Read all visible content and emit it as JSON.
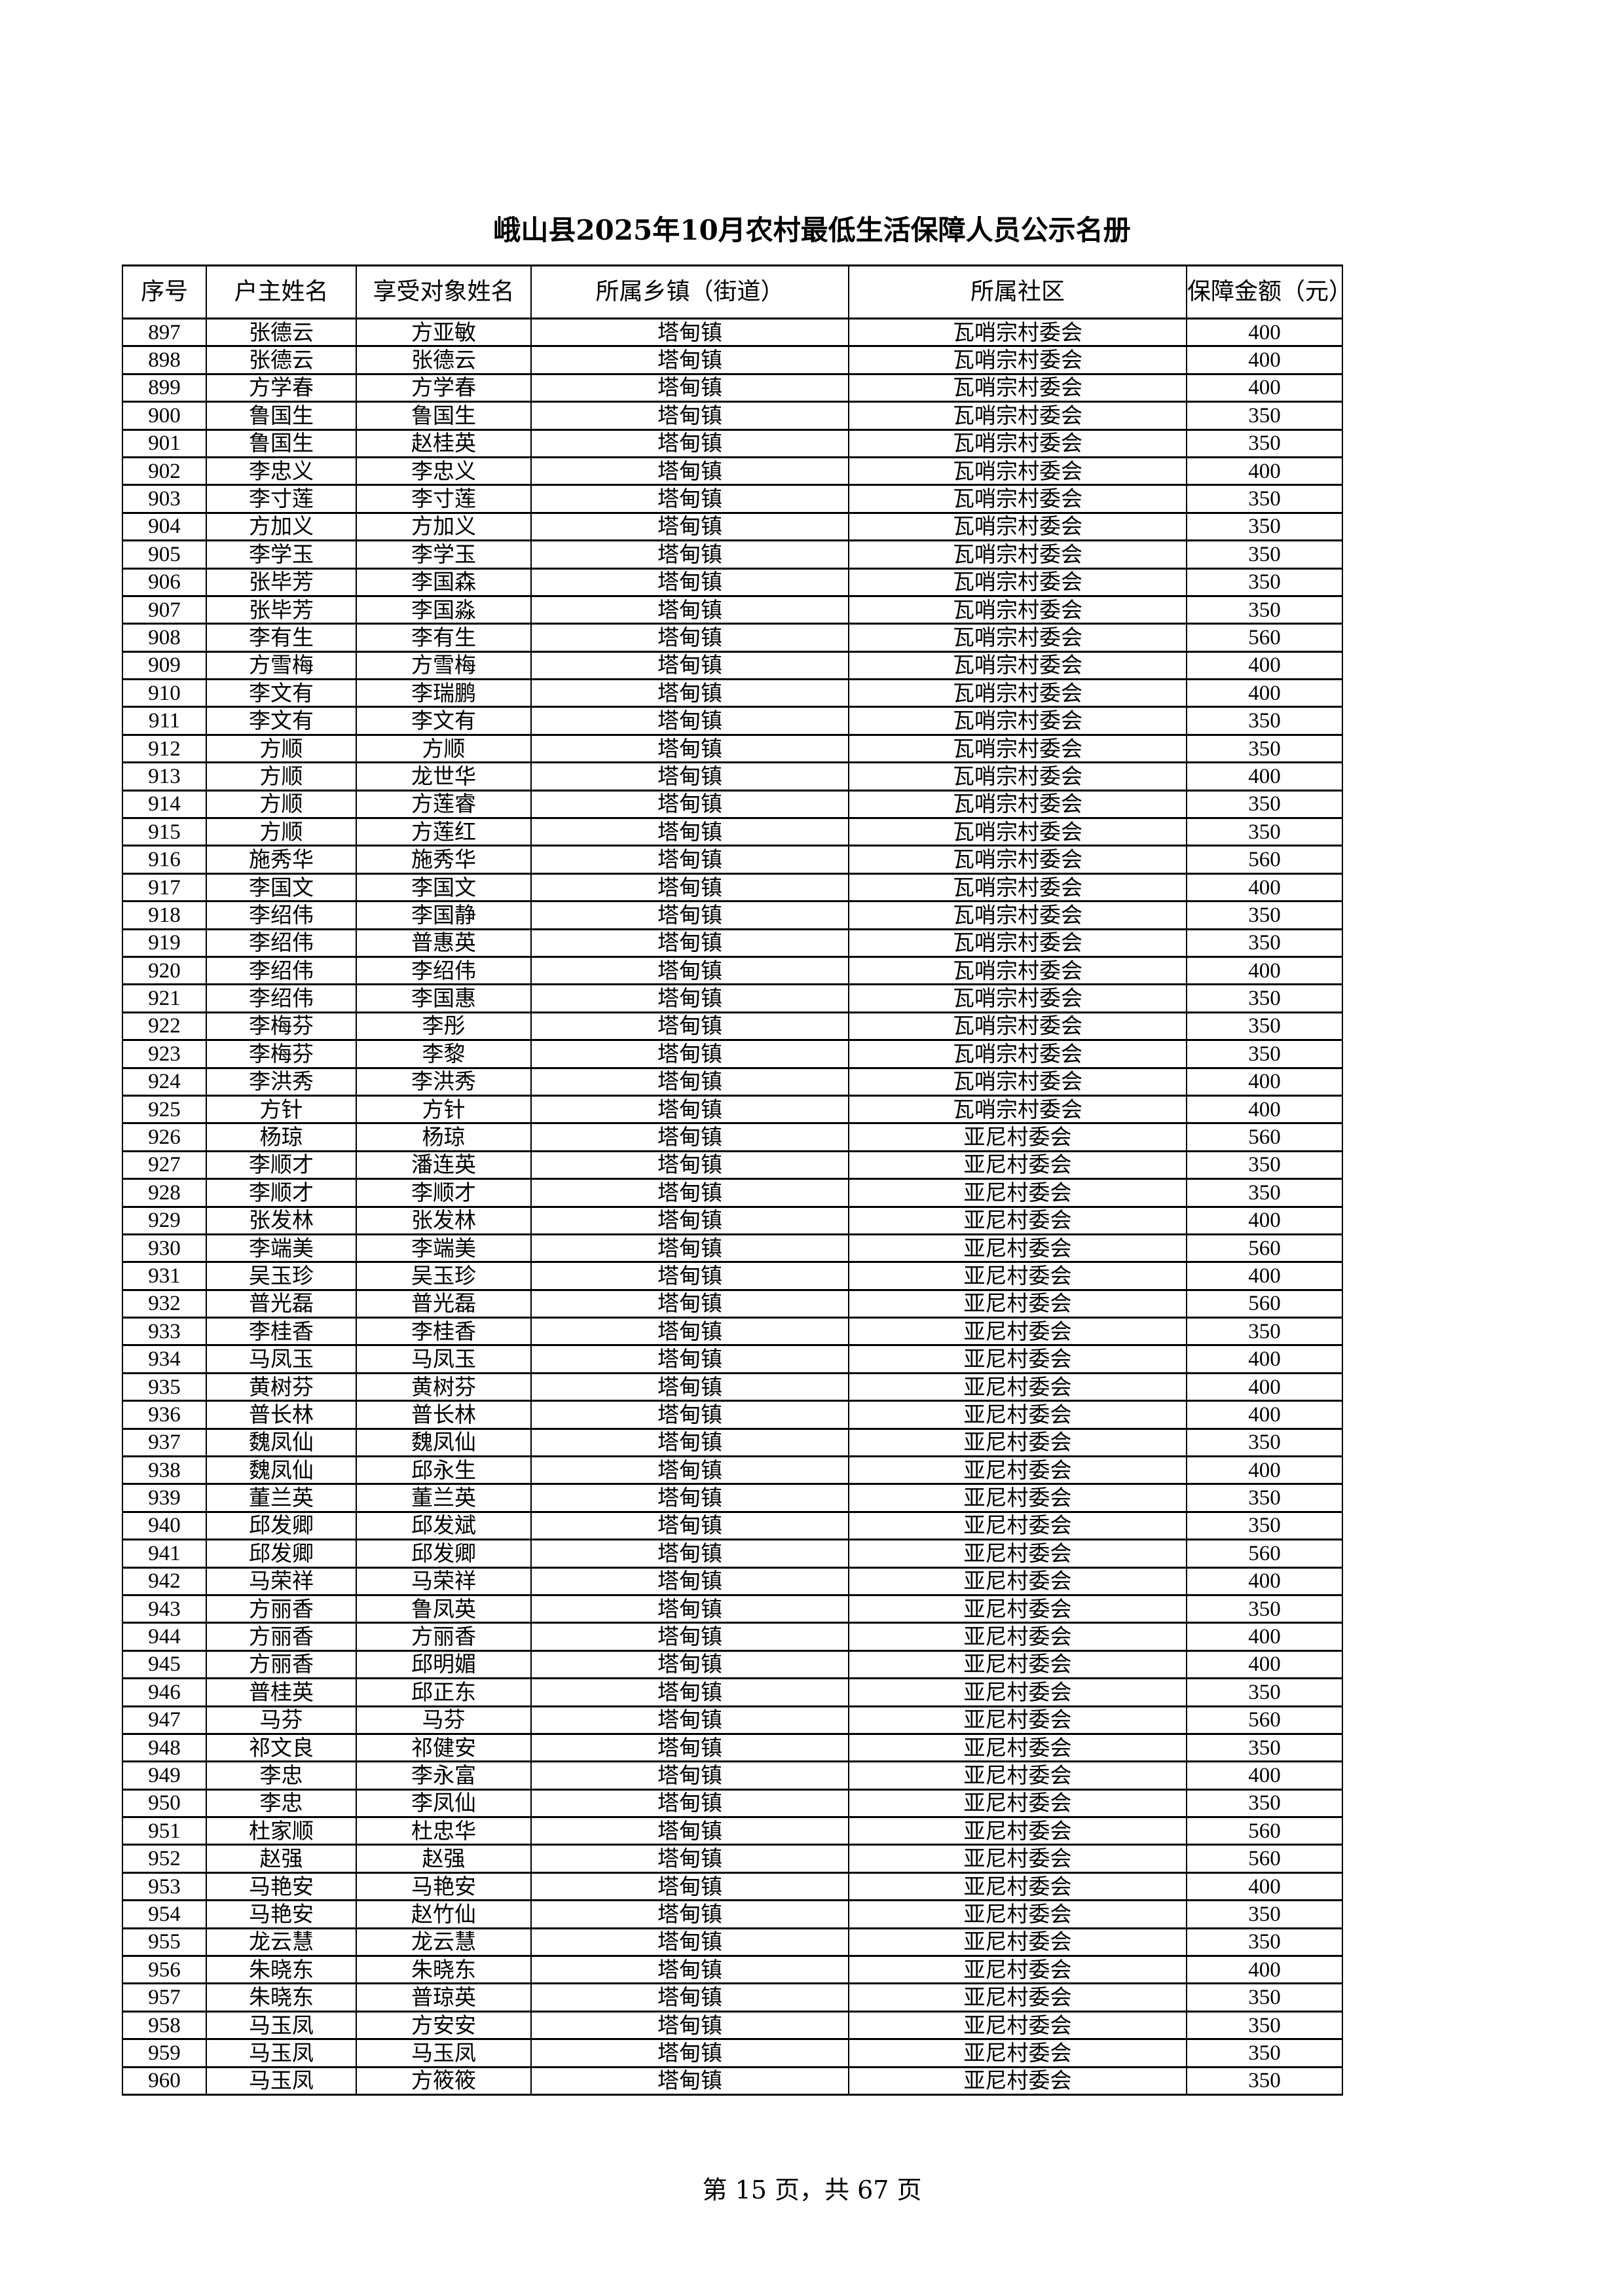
{
  "title": "峨山县2025年10月农村最低生活保障人员公示名册",
  "columns": [
    "序号",
    "户主姓名",
    "享受对象姓名",
    "所属乡镇（街道）",
    "所属社区",
    "保障金额（元）"
  ],
  "rows": [
    [
      "897",
      "张德云",
      "方亚敏",
      "塔甸镇",
      "瓦哨宗村委会",
      "400"
    ],
    [
      "898",
      "张德云",
      "张德云",
      "塔甸镇",
      "瓦哨宗村委会",
      "400"
    ],
    [
      "899",
      "方学春",
      "方学春",
      "塔甸镇",
      "瓦哨宗村委会",
      "400"
    ],
    [
      "900",
      "鲁国生",
      "鲁国生",
      "塔甸镇",
      "瓦哨宗村委会",
      "350"
    ],
    [
      "901",
      "鲁国生",
      "赵桂英",
      "塔甸镇",
      "瓦哨宗村委会",
      "350"
    ],
    [
      "902",
      "李忠义",
      "李忠义",
      "塔甸镇",
      "瓦哨宗村委会",
      "400"
    ],
    [
      "903",
      "李寸莲",
      "李寸莲",
      "塔甸镇",
      "瓦哨宗村委会",
      "350"
    ],
    [
      "904",
      "方加义",
      "方加义",
      "塔甸镇",
      "瓦哨宗村委会",
      "350"
    ],
    [
      "905",
      "李学玉",
      "李学玉",
      "塔甸镇",
      "瓦哨宗村委会",
      "350"
    ],
    [
      "906",
      "张毕芳",
      "李国森",
      "塔甸镇",
      "瓦哨宗村委会",
      "350"
    ],
    [
      "907",
      "张毕芳",
      "李国淼",
      "塔甸镇",
      "瓦哨宗村委会",
      "350"
    ],
    [
      "908",
      "李有生",
      "李有生",
      "塔甸镇",
      "瓦哨宗村委会",
      "560"
    ],
    [
      "909",
      "方雪梅",
      "方雪梅",
      "塔甸镇",
      "瓦哨宗村委会",
      "400"
    ],
    [
      "910",
      "李文有",
      "李瑞鹏",
      "塔甸镇",
      "瓦哨宗村委会",
      "400"
    ],
    [
      "911",
      "李文有",
      "李文有",
      "塔甸镇",
      "瓦哨宗村委会",
      "350"
    ],
    [
      "912",
      "方顺",
      "方顺",
      "塔甸镇",
      "瓦哨宗村委会",
      "350"
    ],
    [
      "913",
      "方顺",
      "龙世华",
      "塔甸镇",
      "瓦哨宗村委会",
      "400"
    ],
    [
      "914",
      "方顺",
      "方莲睿",
      "塔甸镇",
      "瓦哨宗村委会",
      "350"
    ],
    [
      "915",
      "方顺",
      "方莲红",
      "塔甸镇",
      "瓦哨宗村委会",
      "350"
    ],
    [
      "916",
      "施秀华",
      "施秀华",
      "塔甸镇",
      "瓦哨宗村委会",
      "560"
    ],
    [
      "917",
      "李国文",
      "李国文",
      "塔甸镇",
      "瓦哨宗村委会",
      "400"
    ],
    [
      "918",
      "李绍伟",
      "李国静",
      "塔甸镇",
      "瓦哨宗村委会",
      "350"
    ],
    [
      "919",
      "李绍伟",
      "普惠英",
      "塔甸镇",
      "瓦哨宗村委会",
      "350"
    ],
    [
      "920",
      "李绍伟",
      "李绍伟",
      "塔甸镇",
      "瓦哨宗村委会",
      "400"
    ],
    [
      "921",
      "李绍伟",
      "李国惠",
      "塔甸镇",
      "瓦哨宗村委会",
      "350"
    ],
    [
      "922",
      "李梅芬",
      "李彤",
      "塔甸镇",
      "瓦哨宗村委会",
      "350"
    ],
    [
      "923",
      "李梅芬",
      "李黎",
      "塔甸镇",
      "瓦哨宗村委会",
      "350"
    ],
    [
      "924",
      "李洪秀",
      "李洪秀",
      "塔甸镇",
      "瓦哨宗村委会",
      "400"
    ],
    [
      "925",
      "方针",
      "方针",
      "塔甸镇",
      "瓦哨宗村委会",
      "400"
    ],
    [
      "926",
      "杨琼",
      "杨琼",
      "塔甸镇",
      "亚尼村委会",
      "560"
    ],
    [
      "927",
      "李顺才",
      "潘连英",
      "塔甸镇",
      "亚尼村委会",
      "350"
    ],
    [
      "928",
      "李顺才",
      "李顺才",
      "塔甸镇",
      "亚尼村委会",
      "350"
    ],
    [
      "929",
      "张发林",
      "张发林",
      "塔甸镇",
      "亚尼村委会",
      "400"
    ],
    [
      "930",
      "李端美",
      "李端美",
      "塔甸镇",
      "亚尼村委会",
      "560"
    ],
    [
      "931",
      "吴玉珍",
      "吴玉珍",
      "塔甸镇",
      "亚尼村委会",
      "400"
    ],
    [
      "932",
      "普光磊",
      "普光磊",
      "塔甸镇",
      "亚尼村委会",
      "560"
    ],
    [
      "933",
      "李桂香",
      "李桂香",
      "塔甸镇",
      "亚尼村委会",
      "350"
    ],
    [
      "934",
      "马凤玉",
      "马凤玉",
      "塔甸镇",
      "亚尼村委会",
      "400"
    ],
    [
      "935",
      "黄树芬",
      "黄树芬",
      "塔甸镇",
      "亚尼村委会",
      "400"
    ],
    [
      "936",
      "普长林",
      "普长林",
      "塔甸镇",
      "亚尼村委会",
      "400"
    ],
    [
      "937",
      "魏凤仙",
      "魏凤仙",
      "塔甸镇",
      "亚尼村委会",
      "350"
    ],
    [
      "938",
      "魏凤仙",
      "邱永生",
      "塔甸镇",
      "亚尼村委会",
      "400"
    ],
    [
      "939",
      "董兰英",
      "董兰英",
      "塔甸镇",
      "亚尼村委会",
      "350"
    ],
    [
      "940",
      "邱发卿",
      "邱发斌",
      "塔甸镇",
      "亚尼村委会",
      "350"
    ],
    [
      "941",
      "邱发卿",
      "邱发卿",
      "塔甸镇",
      "亚尼村委会",
      "560"
    ],
    [
      "942",
      "马荣祥",
      "马荣祥",
      "塔甸镇",
      "亚尼村委会",
      "400"
    ],
    [
      "943",
      "方丽香",
      "鲁凤英",
      "塔甸镇",
      "亚尼村委会",
      "350"
    ],
    [
      "944",
      "方丽香",
      "方丽香",
      "塔甸镇",
      "亚尼村委会",
      "400"
    ],
    [
      "945",
      "方丽香",
      "邱明媚",
      "塔甸镇",
      "亚尼村委会",
      "400"
    ],
    [
      "946",
      "普桂英",
      "邱正东",
      "塔甸镇",
      "亚尼村委会",
      "350"
    ],
    [
      "947",
      "马芬",
      "马芬",
      "塔甸镇",
      "亚尼村委会",
      "560"
    ],
    [
      "948",
      "祁文良",
      "祁健安",
      "塔甸镇",
      "亚尼村委会",
      "350"
    ],
    [
      "949",
      "李忠",
      "李永富",
      "塔甸镇",
      "亚尼村委会",
      "400"
    ],
    [
      "950",
      "李忠",
      "李凤仙",
      "塔甸镇",
      "亚尼村委会",
      "350"
    ],
    [
      "951",
      "杜家顺",
      "杜忠华",
      "塔甸镇",
      "亚尼村委会",
      "560"
    ],
    [
      "952",
      "赵强",
      "赵强",
      "塔甸镇",
      "亚尼村委会",
      "560"
    ],
    [
      "953",
      "马艳安",
      "马艳安",
      "塔甸镇",
      "亚尼村委会",
      "400"
    ],
    [
      "954",
      "马艳安",
      "赵竹仙",
      "塔甸镇",
      "亚尼村委会",
      "350"
    ],
    [
      "955",
      "龙云慧",
      "龙云慧",
      "塔甸镇",
      "亚尼村委会",
      "350"
    ],
    [
      "956",
      "朱晓东",
      "朱晓东",
      "塔甸镇",
      "亚尼村委会",
      "400"
    ],
    [
      "957",
      "朱晓东",
      "普琼英",
      "塔甸镇",
      "亚尼村委会",
      "350"
    ],
    [
      "958",
      "马玉凤",
      "方安安",
      "塔甸镇",
      "亚尼村委会",
      "350"
    ],
    [
      "959",
      "马玉凤",
      "马玉凤",
      "塔甸镇",
      "亚尼村委会",
      "350"
    ],
    [
      "960",
      "马玉凤",
      "方筱筱",
      "塔甸镇",
      "亚尼村委会",
      "350"
    ]
  ],
  "footer": "第 15 页，共 67 页"
}
